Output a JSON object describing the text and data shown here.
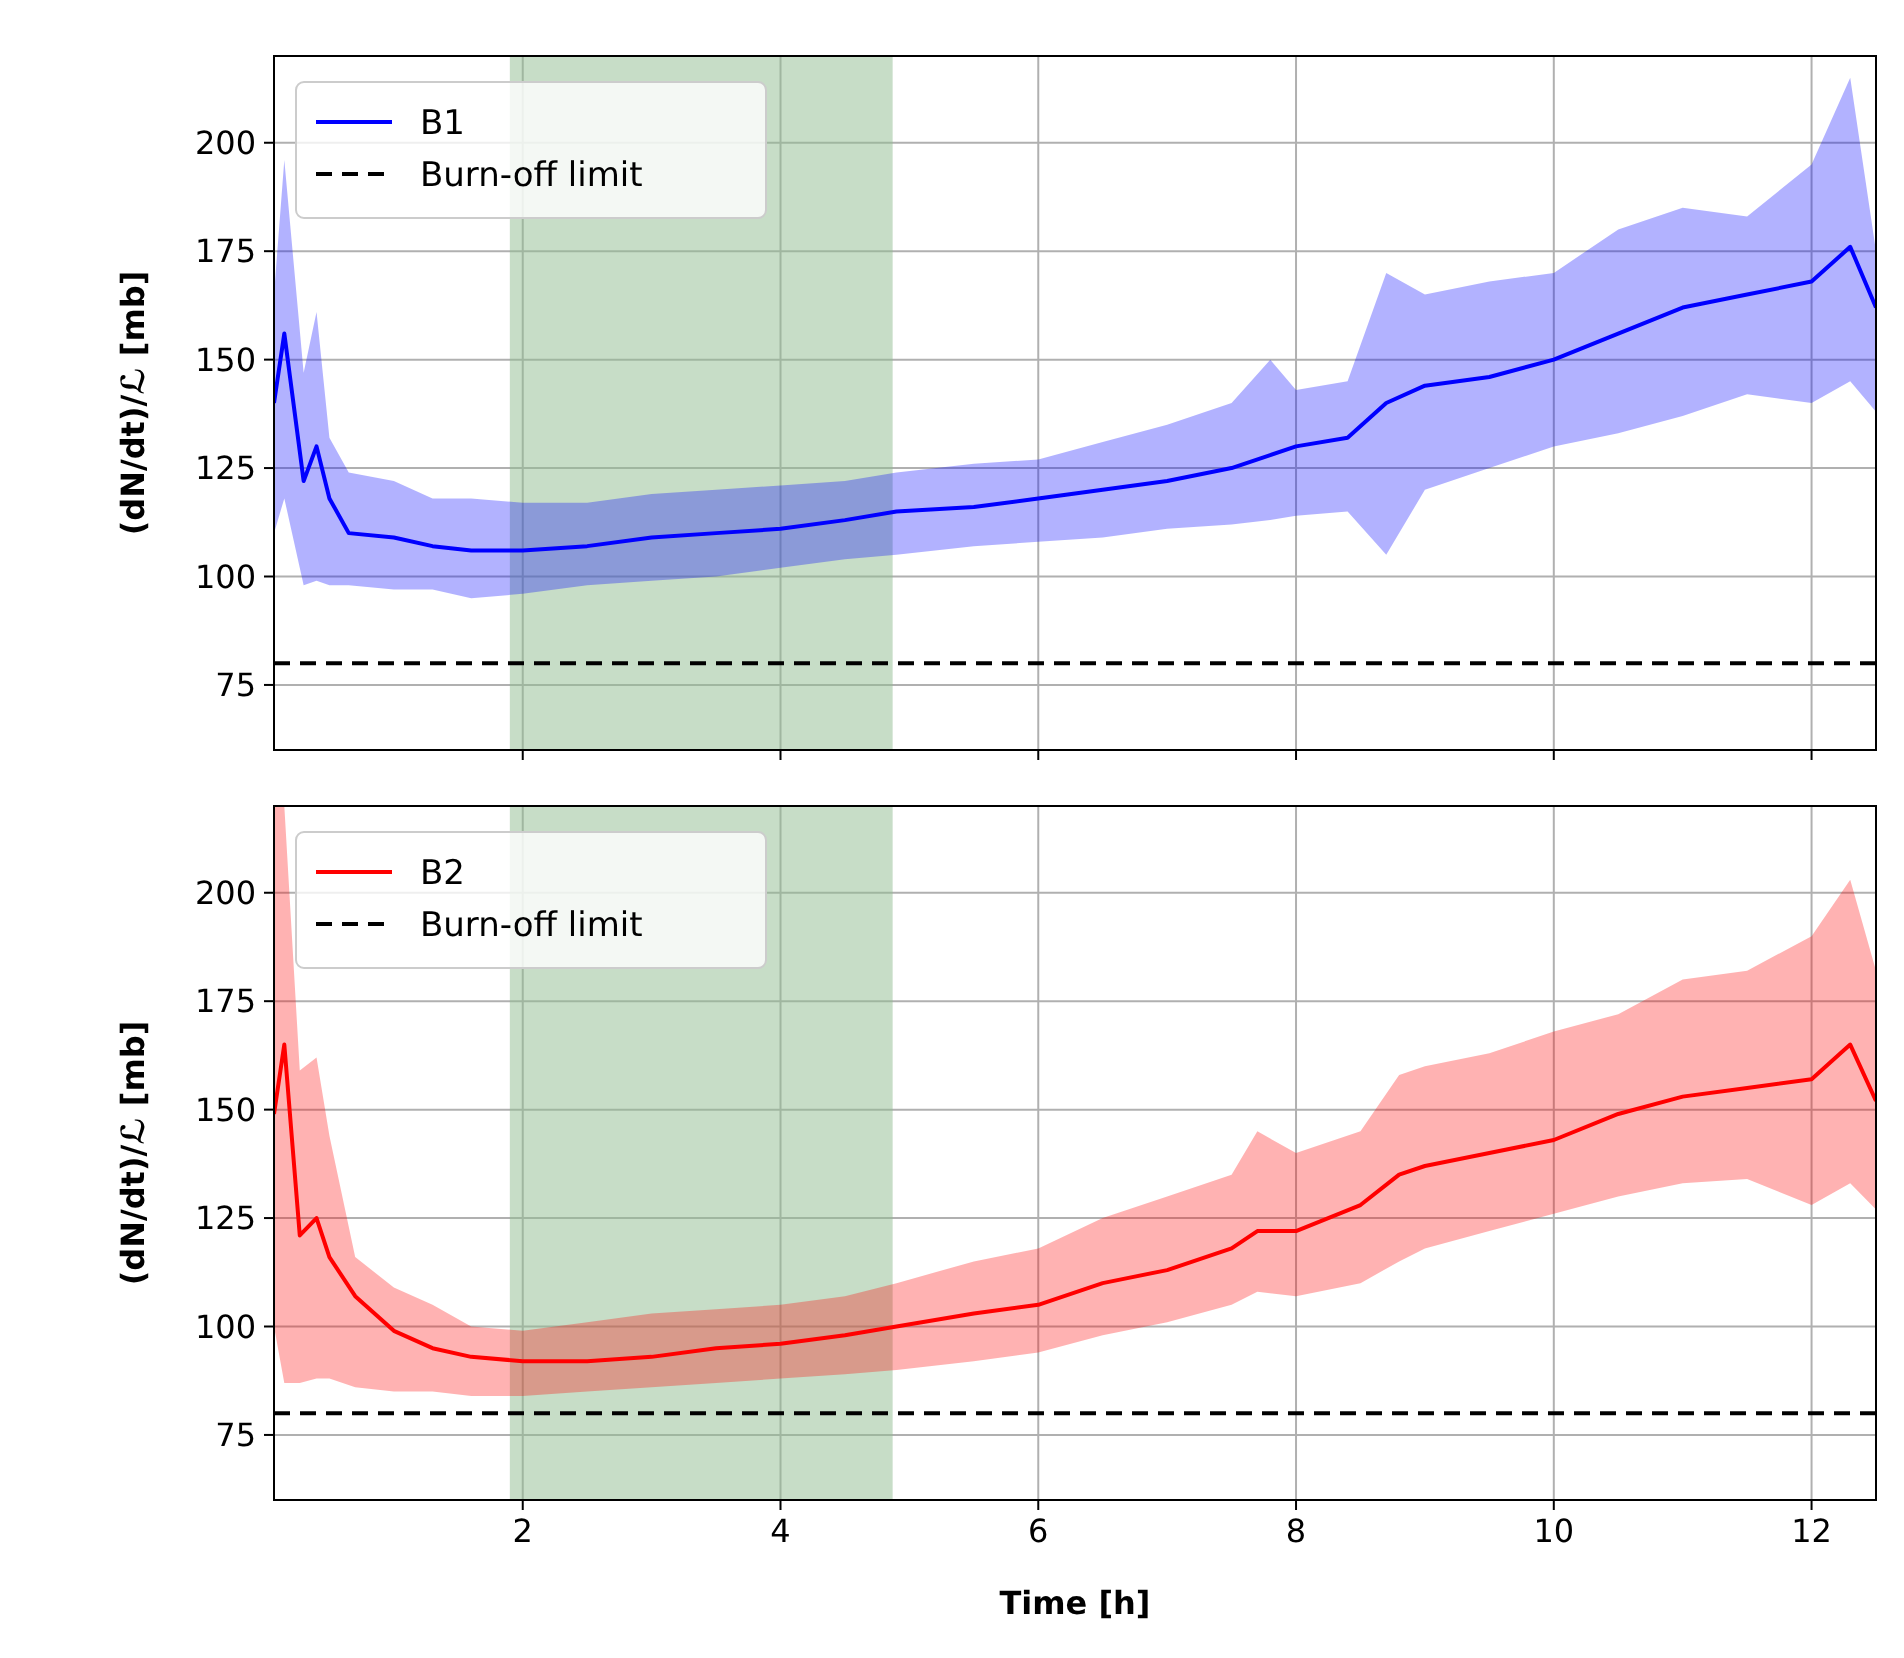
{
  "chart_data": [
    {
      "type": "line",
      "ylabel": "(dN/dt)/ℒ [mb]",
      "xlim": [
        0.07,
        12.5
      ],
      "xticks": [
        2,
        4,
        6,
        8,
        10,
        12
      ],
      "ylim": [
        60,
        220
      ],
      "yticks": [
        75,
        100,
        125,
        150,
        175,
        200
      ],
      "tick_labels": "y",
      "grid": true,
      "legend": "top left",
      "line_style": "solid",
      "series": [
        {
          "name": "B1",
          "color": "#0000ff",
          "x": [
            0.07,
            0.15,
            0.3,
            0.4,
            0.5,
            0.65,
            1.0,
            1.3,
            1.6,
            2.0,
            2.5,
            3.0,
            3.5,
            4.0,
            4.5,
            4.9,
            5.5,
            6.0,
            6.5,
            7.0,
            7.5,
            7.8,
            8.0,
            8.4,
            8.7,
            9.0,
            9.5,
            10.0,
            10.5,
            11.0,
            11.5,
            12.0,
            12.3,
            12.5
          ],
          "values": [
            140,
            156,
            122,
            130,
            118,
            110,
            109,
            107,
            106,
            106,
            107,
            109,
            110,
            111,
            113,
            115,
            116,
            118,
            120,
            122,
            125,
            128,
            130,
            132,
            140,
            144,
            146,
            150,
            156,
            162,
            165,
            168,
            176,
            162
          ],
          "lower": [
            110,
            118,
            98,
            99,
            98,
            98,
            97,
            97,
            95,
            96,
            98,
            99,
            100,
            102,
            104,
            105,
            107,
            108,
            109,
            111,
            112,
            113,
            114,
            115,
            105,
            120,
            125,
            130,
            133,
            137,
            142,
            140,
            145,
            138
          ],
          "upper": [
            165,
            196,
            147,
            161,
            132,
            124,
            122,
            118,
            118,
            117,
            117,
            119,
            120,
            121,
            122,
            124,
            126,
            127,
            131,
            135,
            140,
            150,
            143,
            145,
            170,
            165,
            168,
            170,
            180,
            185,
            183,
            195,
            215,
            175
          ]
        }
      ],
      "ref_lines": [
        {
          "axis": "y",
          "value": 80,
          "label": "Burn-off limit",
          "color": "#000000",
          "line_style": "dashed"
        }
      ],
      "bands": [
        {
          "axis": "x",
          "from": 1.9,
          "to": 4.87,
          "color": "#8fbc8f"
        }
      ]
    },
    {
      "type": "line",
      "xlabel": "Time [h]",
      "ylabel": "(dN/dt)/ℒ [mb]",
      "xlim": [
        0.07,
        12.5
      ],
      "xticks": [
        2,
        4,
        6,
        8,
        10,
        12
      ],
      "ylim": [
        60,
        220
      ],
      "yticks": [
        75,
        100,
        125,
        150,
        175,
        200
      ],
      "grid": true,
      "legend": "top left",
      "line_style": "solid",
      "series": [
        {
          "name": "B2",
          "color": "#ff0000",
          "x": [
            0.07,
            0.15,
            0.27,
            0.4,
            0.5,
            0.7,
            1.0,
            1.3,
            1.6,
            2.0,
            2.5,
            3.0,
            3.5,
            4.0,
            4.5,
            4.9,
            5.5,
            6.0,
            6.5,
            7.0,
            7.5,
            7.7,
            8.0,
            8.5,
            8.8,
            9.0,
            9.5,
            10.0,
            10.5,
            11.0,
            11.5,
            12.0,
            12.3,
            12.5
          ],
          "values": [
            149,
            165,
            121,
            125,
            116,
            107,
            99,
            95,
            93,
            92,
            92,
            93,
            95,
            96,
            98,
            100,
            103,
            105,
            110,
            113,
            118,
            122,
            122,
            128,
            135,
            137,
            140,
            143,
            149,
            153,
            155,
            157,
            165,
            152
          ],
          "lower": [
            100,
            87,
            87,
            88,
            88,
            86,
            85,
            85,
            84,
            84,
            85,
            86,
            87,
            88,
            89,
            90,
            92,
            94,
            98,
            101,
            105,
            108,
            107,
            110,
            115,
            118,
            122,
            126,
            130,
            133,
            134,
            128,
            133,
            127
          ],
          "upper": [
            220,
            220,
            159,
            162,
            144,
            116,
            109,
            105,
            100,
            99,
            101,
            103,
            104,
            105,
            107,
            110,
            115,
            118,
            125,
            130,
            135,
            145,
            140,
            145,
            158,
            160,
            163,
            168,
            172,
            180,
            182,
            190,
            203,
            182
          ]
        }
      ],
      "ref_lines": [
        {
          "axis": "y",
          "value": 80,
          "label": "Burn-off limit",
          "color": "#000000",
          "line_style": "dashed"
        }
      ],
      "bands": [
        {
          "axis": "x",
          "from": 1.9,
          "to": 4.87,
          "color": "#8fbc8f"
        }
      ]
    }
  ]
}
